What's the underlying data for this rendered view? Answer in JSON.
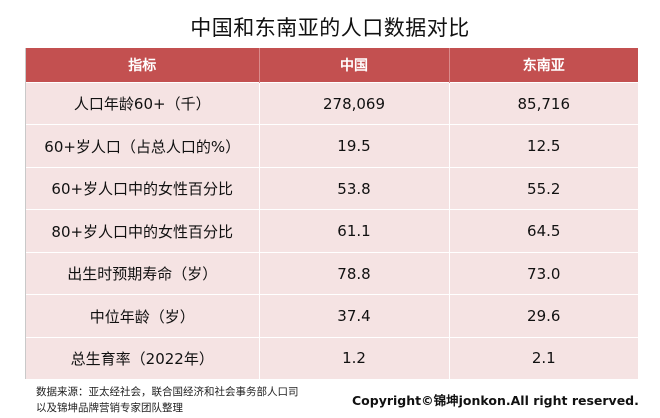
{
  "title": "中国和东南亚的人口数据对比",
  "table": {
    "headers": [
      "指标",
      "中国",
      "东南亚"
    ],
    "rows": [
      [
        "人口年龄60+（千）",
        "278,069",
        "85,716"
      ],
      [
        "60+岁人口（占总人口的%）",
        "19.5",
        "12.5"
      ],
      [
        "60+岁人口中的女性百分比",
        "53.8",
        "55.2"
      ],
      [
        "80+岁人口中的女性百分比",
        "61.1",
        "64.5"
      ],
      [
        "出生时预期寿命（岁）",
        "78.8",
        "73.0"
      ],
      [
        "中位年龄（岁）",
        "37.4",
        "29.6"
      ],
      [
        "总生育率（2022年）",
        "1.2",
        "2.1"
      ]
    ]
  },
  "footnote": {
    "line1": "数据来源：亚太经社会，联合国经济和社会事务部人口司",
    "line2": "以及锦坤品牌营销专家团队整理"
  },
  "copyright": "Copyright©锦坤jonkon.All right reserved.",
  "colors": {
    "header_bg": "#c35050",
    "row_bg": "#f5e3e3"
  }
}
